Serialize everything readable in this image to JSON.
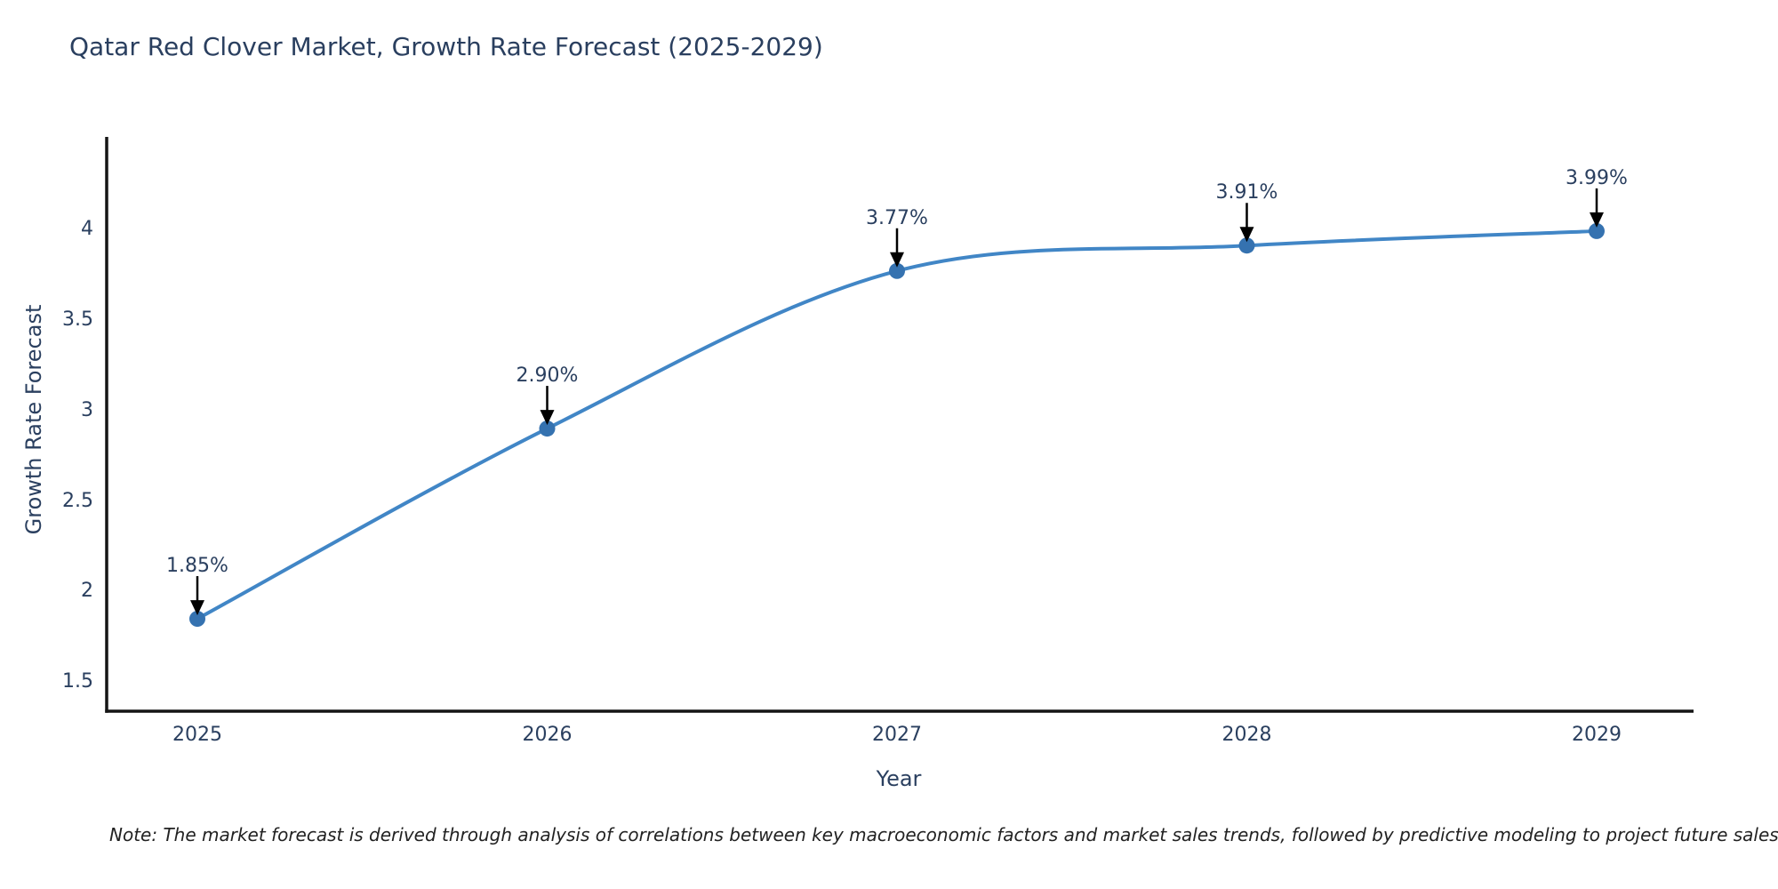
{
  "chart_data": {
    "type": "line",
    "title": "Qatar Red Clover Market, Growth Rate Forecast (2025-2029)",
    "xlabel": "Year",
    "ylabel": "Growth Rate Forecast",
    "note": "Note: The market forecast is derived through analysis of correlations between key macroeconomic factors and market sales trends, followed by predictive modeling to project future sales",
    "x": [
      2025,
      2026,
      2027,
      2028,
      2029
    ],
    "x_tick_labels": [
      "2025",
      "2026",
      "2027",
      "2028",
      "2029"
    ],
    "values": [
      1.85,
      2.9,
      3.77,
      3.91,
      3.99
    ],
    "point_labels": [
      "1.85%",
      "2.90%",
      "3.77%",
      "3.91%",
      "3.99%"
    ],
    "y_ticks": [
      1.5,
      2,
      2.5,
      3,
      3.5,
      4
    ],
    "y_tick_labels": [
      "1.5",
      "2",
      "2.5",
      "3",
      "3.5",
      "4"
    ],
    "ylim": [
      1.34,
      4.5
    ],
    "line_shape": "spline",
    "grid": false,
    "legend": "none",
    "annotation_arrows": true,
    "colors": {
      "line": "#4186c6",
      "marker": "#3572b0",
      "arrow": "#000000",
      "axis": "#151515",
      "title_text": "#2a3f5f",
      "tick_text": "#2a3f5f",
      "note_text": "#222222",
      "background": "#ffffff"
    }
  }
}
